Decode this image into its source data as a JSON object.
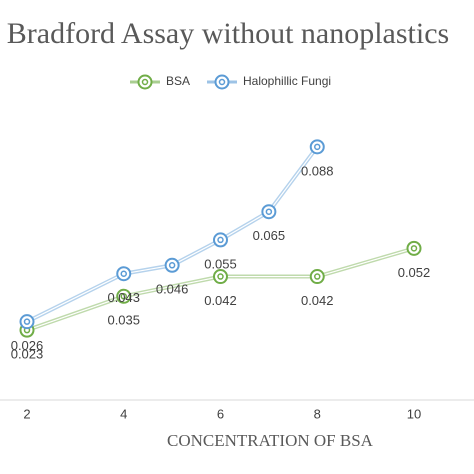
{
  "chart_data": {
    "type": "line",
    "title": "Bradford Assay without nanoplastics",
    "x_label": "CONCENTRATION OF BSA",
    "xlim": [
      2,
      10
    ],
    "xticks": [
      2,
      4,
      6,
      8,
      10
    ],
    "ylim": [
      0,
      0.1
    ],
    "legend": "top",
    "series": [
      {
        "name": "BSA",
        "color": "#70ad47",
        "x": [
          2,
          4,
          6,
          8,
          10
        ],
        "values": [
          0.023,
          0.035,
          0.042,
          0.042,
          0.052
        ]
      },
      {
        "name": "Halophillic Fungi",
        "color": "#5b9bd5",
        "x": [
          2,
          4,
          5,
          6,
          7,
          8
        ],
        "values": [
          0.026,
          0.043,
          0.046,
          0.055,
          0.065,
          0.088
        ]
      }
    ]
  }
}
